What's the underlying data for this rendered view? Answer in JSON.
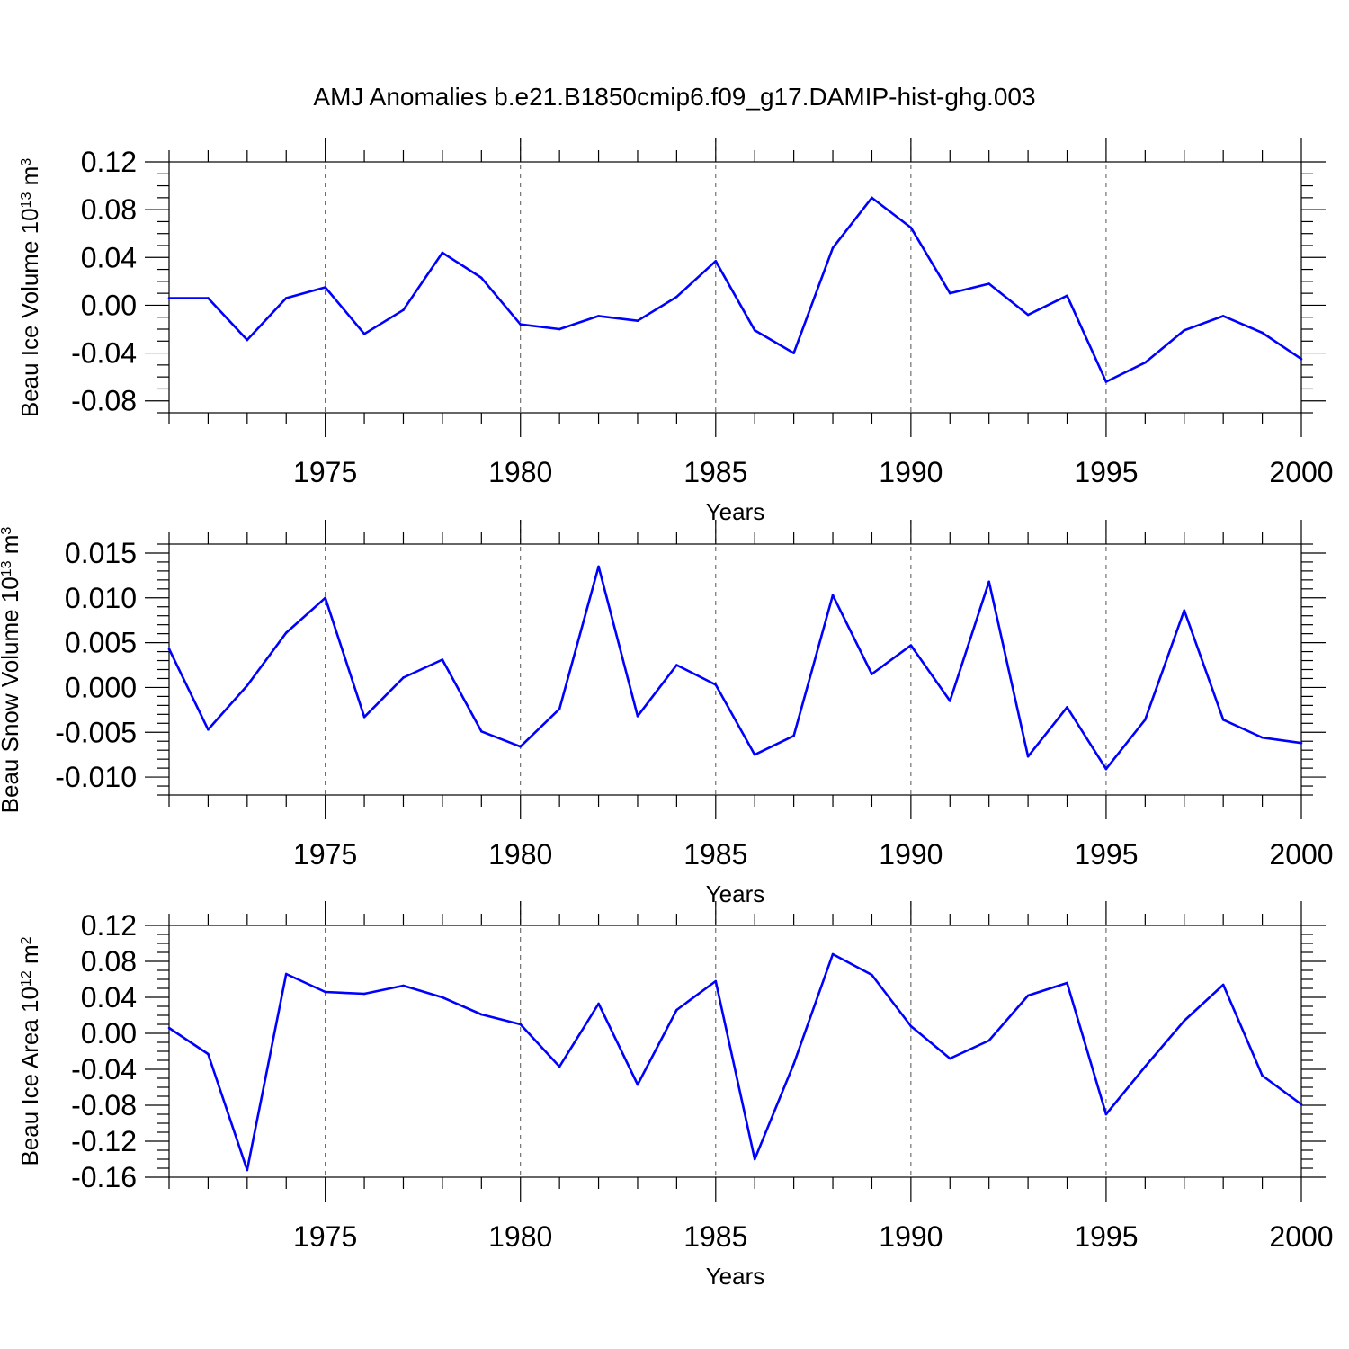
{
  "figure_title": "AMJ Anomalies b.e21.B1850cmip6.f09_g17.DAMIP-hist-ghg.003",
  "chart_data": [
    {
      "type": "line",
      "name": "ice-volume",
      "ylabel_main": "Beau Ice Volume 10",
      "ylabel_exp": "13",
      "ylabel_unit": " m",
      "ylabel_unit_exp": "3",
      "xlabel": "Years",
      "xlim": [
        1971,
        2000
      ],
      "ylim": [
        -0.09,
        0.12
      ],
      "y_ticks": [
        "0.12",
        "0.08",
        "0.04",
        "0.00",
        "-0.04",
        "-0.08"
      ],
      "y_tick_values": [
        0.12,
        0.08,
        0.04,
        0.0,
        -0.04,
        -0.08
      ],
      "y_minor_step": 0.01,
      "x_ticks": [
        "1975",
        "1980",
        "1985",
        "1990",
        "1995",
        "2000"
      ],
      "x_tick_values": [
        1975,
        1980,
        1985,
        1990,
        1995,
        2000
      ],
      "x": [
        1971,
        1972,
        1973,
        1974,
        1975,
        1976,
        1977,
        1978,
        1979,
        1980,
        1981,
        1982,
        1983,
        1984,
        1985,
        1986,
        1987,
        1988,
        1989,
        1990,
        1991,
        1992,
        1993,
        1994,
        1995,
        1996,
        1997,
        1998,
        1999,
        2000
      ],
      "series": [
        {
          "name": "anomaly",
          "color": "#0000ff",
          "values": [
            0.006,
            0.006,
            -0.029,
            0.006,
            0.015,
            -0.024,
            -0.004,
            0.044,
            0.023,
            -0.016,
            -0.02,
            -0.009,
            -0.013,
            0.007,
            0.037,
            -0.021,
            -0.04,
            0.048,
            0.09,
            0.065,
            0.01,
            0.018,
            -0.008,
            0.008,
            -0.064,
            -0.048,
            -0.021,
            -0.009,
            -0.023,
            -0.045
          ]
        }
      ]
    },
    {
      "type": "line",
      "name": "snow-volume",
      "ylabel_main": "Beau Snow Volume 10",
      "ylabel_exp": "13",
      "ylabel_unit": " m",
      "ylabel_unit_exp": "3",
      "xlabel": "Years",
      "xlim": [
        1971,
        2000
      ],
      "ylim": [
        -0.012,
        0.016
      ],
      "y_ticks": [
        "0.015",
        "0.010",
        "0.005",
        "0.000",
        "-0.005",
        "-0.010"
      ],
      "y_tick_values": [
        0.015,
        0.01,
        0.005,
        0.0,
        -0.005,
        -0.01
      ],
      "y_minor_step": 0.001,
      "x_ticks": [
        "1975",
        "1980",
        "1985",
        "1990",
        "1995",
        "2000"
      ],
      "x_tick_values": [
        1975,
        1980,
        1985,
        1990,
        1995,
        2000
      ],
      "x": [
        1971,
        1972,
        1973,
        1974,
        1975,
        1976,
        1977,
        1978,
        1979,
        1980,
        1981,
        1982,
        1983,
        1984,
        1985,
        1986,
        1987,
        1988,
        1989,
        1990,
        1991,
        1992,
        1993,
        1994,
        1995,
        1996,
        1997,
        1998,
        1999,
        2000
      ],
      "series": [
        {
          "name": "anomaly",
          "color": "#0000ff",
          "values": [
            0.0043,
            -0.0047,
            0.0002,
            0.0061,
            0.01,
            -0.0033,
            0.0011,
            0.0031,
            -0.0049,
            -0.0066,
            -0.0024,
            0.0135,
            -0.0032,
            0.0025,
            0.0003,
            -0.0075,
            -0.0054,
            0.0103,
            0.0015,
            0.0047,
            -0.0015,
            0.0118,
            -0.0077,
            -0.0022,
            -0.0091,
            -0.0036,
            0.0086,
            -0.0036,
            -0.0056,
            -0.0062
          ]
        }
      ]
    },
    {
      "type": "line",
      "name": "ice-area",
      "ylabel_main": "Beau Ice Area 10",
      "ylabel_exp": "12",
      "ylabel_unit": " m",
      "ylabel_unit_exp": "2",
      "xlabel": "Years",
      "xlim": [
        1971,
        2000
      ],
      "ylim": [
        -0.16,
        0.12
      ],
      "y_ticks": [
        "0.12",
        "0.08",
        "0.04",
        "0.00",
        "-0.04",
        "-0.08",
        "-0.12",
        "-0.16"
      ],
      "y_tick_values": [
        0.12,
        0.08,
        0.04,
        0.0,
        -0.04,
        -0.08,
        -0.12,
        -0.16
      ],
      "y_minor_step": 0.01,
      "x_ticks": [
        "1975",
        "1980",
        "1985",
        "1990",
        "1995",
        "2000"
      ],
      "x_tick_values": [
        1975,
        1980,
        1985,
        1990,
        1995,
        2000
      ],
      "x": [
        1971,
        1972,
        1973,
        1974,
        1975,
        1976,
        1977,
        1978,
        1979,
        1980,
        1981,
        1982,
        1983,
        1984,
        1985,
        1986,
        1987,
        1988,
        1989,
        1990,
        1991,
        1992,
        1993,
        1994,
        1995,
        1996,
        1997,
        1998,
        1999,
        2000
      ],
      "series": [
        {
          "name": "anomaly",
          "color": "#0000ff",
          "values": [
            0.006,
            -0.023,
            -0.152,
            0.066,
            0.046,
            0.044,
            0.053,
            0.04,
            0.021,
            0.01,
            -0.037,
            0.033,
            -0.057,
            0.026,
            0.058,
            -0.14,
            -0.034,
            0.088,
            0.065,
            0.008,
            -0.028,
            -0.008,
            0.042,
            0.056,
            -0.09,
            -0.037,
            0.014,
            0.054,
            -0.047,
            -0.079
          ]
        }
      ]
    }
  ]
}
